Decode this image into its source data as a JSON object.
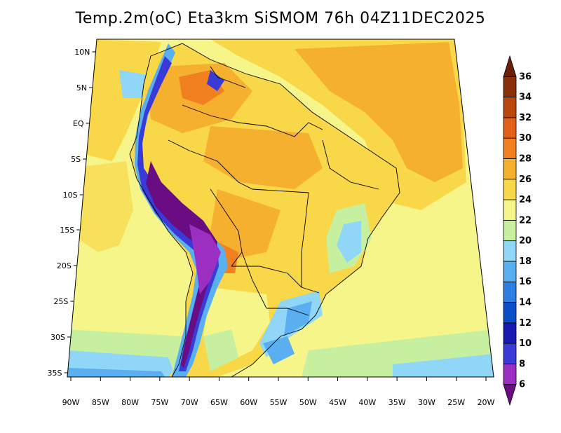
{
  "title": "Temp.2m(oC) Eta3km SiSMOM 76h 04Z11DEC2025",
  "lat_labels": [
    "10N",
    "5N",
    "EQ",
    "5S",
    "10S",
    "15S",
    "20S",
    "25S",
    "30S",
    "35S"
  ],
  "lon_labels": [
    "90W",
    "85W",
    "80W",
    "75W",
    "70W",
    "65W",
    "60W",
    "55W",
    "50W",
    "45W",
    "40W",
    "35W",
    "30W",
    "25W",
    "20W"
  ],
  "colorbar": {
    "labels": [
      "6",
      "8",
      "10",
      "12",
      "14",
      "16",
      "18",
      "20",
      "22",
      "24",
      "26",
      "28",
      "30",
      "32",
      "34",
      "36"
    ],
    "colors": [
      "#6a0d83",
      "#9a2fc2",
      "#3a3ad6",
      "#1919b0",
      "#0a4fc8",
      "#2a7fe0",
      "#5aaff0",
      "#90d6f7",
      "#c6f0a0",
      "#f5f58a",
      "#f8d848",
      "#f5b030",
      "#f08020",
      "#e0601a",
      "#b8480e",
      "#8a3008",
      "#6a2006"
    ]
  }
}
